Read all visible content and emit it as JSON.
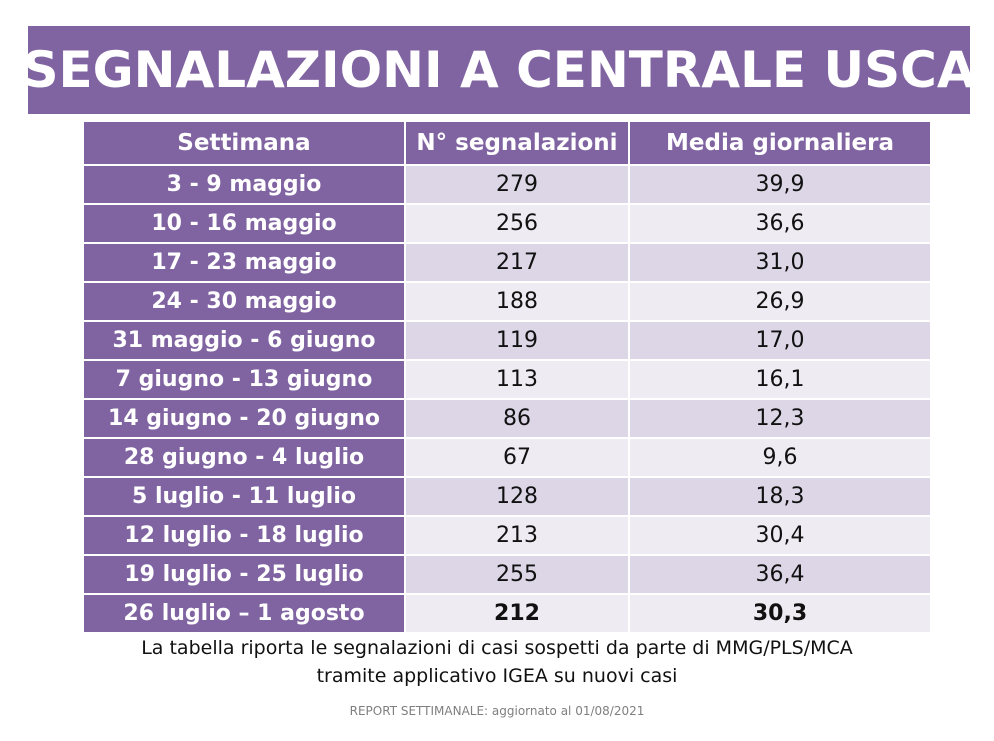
{
  "title": "SEGNALAZIONI A CENTRALE USCA",
  "table": {
    "headers": [
      "Settimana",
      "N° segnalazioni",
      "Media giornaliera"
    ],
    "rows": [
      {
        "week": "3 - 9 maggio",
        "count": "279",
        "avg": "39,9"
      },
      {
        "week": "10 - 16 maggio",
        "count": "256",
        "avg": "36,6"
      },
      {
        "week": "17 - 23 maggio",
        "count": "217",
        "avg": "31,0"
      },
      {
        "week": "24 - 30 maggio",
        "count": "188",
        "avg": "26,9"
      },
      {
        "week": "31 maggio - 6 giugno",
        "count": "119",
        "avg": "17,0"
      },
      {
        "week": "7 giugno - 13 giugno",
        "count": "113",
        "avg": "16,1"
      },
      {
        "week": "14 giugno - 20 giugno",
        "count": "86",
        "avg": "12,3"
      },
      {
        "week": "28 giugno - 4 luglio",
        "count": "67",
        "avg": "9,6"
      },
      {
        "week": "5 luglio - 11 luglio",
        "count": "128",
        "avg": "18,3"
      },
      {
        "week": "12 luglio - 18 luglio",
        "count": "213",
        "avg": "30,4"
      },
      {
        "week": "19 luglio - 25 luglio",
        "count": "255",
        "avg": "36,4"
      },
      {
        "week": "26 luglio – 1 agosto",
        "count": "212",
        "avg": "30,3"
      }
    ]
  },
  "footnote": {
    "line1": "La tabella riporta le segnalazioni di casi sospetti da parte di MMG/PLS/MCA",
    "line2": "tramite applicativo IGEA su nuovi casi"
  },
  "report_note": "REPORT SETTIMANALE: aggiornato al 01/08/2021",
  "colors": {
    "accent": "#8064a2",
    "row_light": "#eeebf3",
    "row_dark": "#dcd6e6"
  }
}
